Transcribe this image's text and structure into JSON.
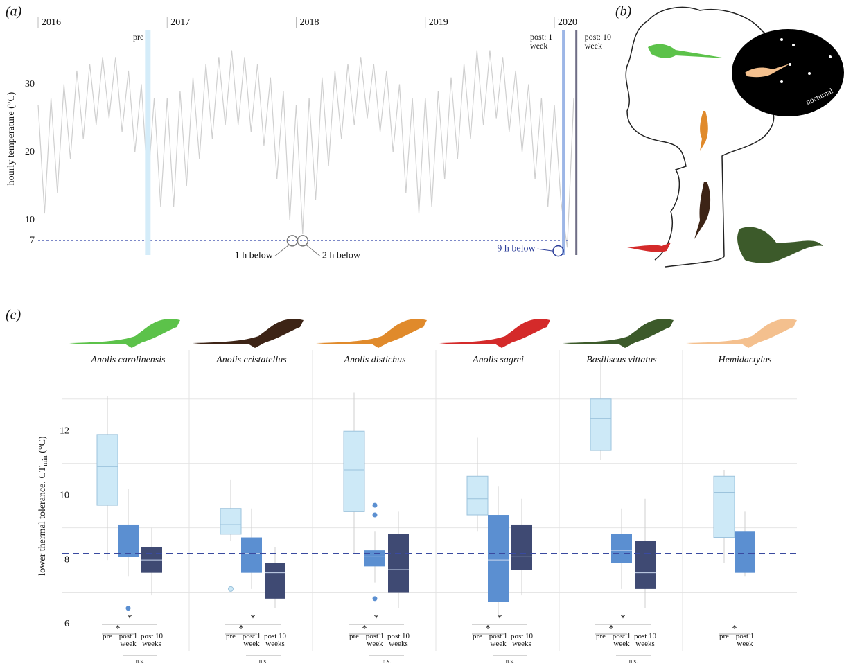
{
  "panel_b": {
    "panel_label": "(b)",
    "night_label": "nocturnal"
  },
  "chart_data": [
    {
      "type": "line",
      "panel_label": "(a)",
      "y_label": "hourly temperature (°C)",
      "x": [
        2016.0,
        2016.05,
        2016.1,
        2016.15,
        2016.2,
        2016.25,
        2016.3,
        2016.35,
        2016.4,
        2016.45,
        2016.5,
        2016.55,
        2016.6,
        2016.65,
        2016.7,
        2016.75,
        2016.8,
        2016.85,
        2016.9,
        2016.95,
        2017.0,
        2017.05,
        2017.1,
        2017.15,
        2017.2,
        2017.25,
        2017.3,
        2017.35,
        2017.4,
        2017.45,
        2017.5,
        2017.55,
        2017.6,
        2017.65,
        2017.7,
        2017.75,
        2017.8,
        2017.85,
        2017.9,
        2017.95,
        2018.0,
        2018.05,
        2018.1,
        2018.15,
        2018.2,
        2018.25,
        2018.3,
        2018.35,
        2018.4,
        2018.45,
        2018.5,
        2018.55,
        2018.6,
        2018.65,
        2018.7,
        2018.75,
        2018.8,
        2018.85,
        2018.9,
        2018.95,
        2019.0,
        2019.05,
        2019.1,
        2019.15,
        2019.2,
        2019.25,
        2019.3,
        2019.35,
        2019.4,
        2019.45,
        2019.5,
        2019.55,
        2019.6,
        2019.65,
        2019.7,
        2019.75,
        2019.8,
        2019.85,
        2019.9,
        2019.95,
        2020.0,
        2020.05,
        2020.1,
        2020.15
      ],
      "values": [
        27,
        11,
        28,
        14,
        30,
        19,
        32,
        22,
        33,
        24,
        34,
        25,
        34,
        23,
        32,
        20,
        30,
        15,
        28,
        12,
        28,
        12,
        29,
        15,
        31,
        19,
        33,
        22,
        34,
        24,
        35,
        24,
        34,
        23,
        33,
        21,
        31,
        16,
        29,
        10,
        27,
        8,
        28,
        13,
        31,
        18,
        32,
        22,
        33,
        24,
        34,
        25,
        33,
        23,
        32,
        20,
        30,
        14,
        28,
        11,
        28,
        12,
        29,
        16,
        31,
        19,
        33,
        22,
        35,
        24,
        35,
        25,
        34,
        23,
        32,
        20,
        30,
        16,
        28,
        12,
        27,
        13,
        6,
        28
      ],
      "color": "#cfcfcf",
      "xlim": [
        2016,
        2020.22
      ],
      "xticks": [
        2016,
        2017,
        2018,
        2019,
        2020
      ],
      "ylim": [
        5,
        38
      ],
      "yticks": [
        7,
        10,
        20,
        30
      ],
      "threshold": 7,
      "threshold_color": "#6a78c0",
      "periods": [
        {
          "label": "pre",
          "x": 2016.85,
          "color": "#d4ecf9"
        },
        {
          "label": "post: 1 week",
          "x": 2020.07,
          "color": "#9db6e6"
        },
        {
          "label": "post: 10 week",
          "x": 2020.17,
          "color": "#6f6e86"
        }
      ],
      "events": [
        {
          "label": "1 h below",
          "x": 2017.97,
          "y": 7,
          "color": "#777777"
        },
        {
          "label": "2 h below",
          "x": 2018.05,
          "y": 7,
          "color": "#777777"
        },
        {
          "label": "9 h below",
          "x": 2020.03,
          "y": 5.5,
          "color": "#2c3e99"
        }
      ]
    },
    {
      "type": "box",
      "panel_label": "(c)",
      "y_label": "lower thermal tolerance, CT",
      "y_label_sub": "min",
      "y_label_end": " (°C)",
      "categories": [
        "pre",
        "post 1 week",
        "post 10 weeks"
      ],
      "colors": [
        "#cde9f7",
        "#5b8fd1",
        "#3f4a73"
      ],
      "ylim": [
        6,
        14.2
      ],
      "yticks": [
        6,
        8,
        10,
        12
      ],
      "minor_yticks": [
        7,
        9,
        11,
        13
      ],
      "threshold": 8.2,
      "threshold_color": "#3a4aa0",
      "species": [
        {
          "name": "Anolis carolinensis",
          "color": "#5cc24a",
          "boxes": [
            {
              "min": 8.0,
              "q1": 9.7,
              "median": 10.9,
              "q3": 11.9,
              "max": 13.1,
              "outliers": []
            },
            {
              "min": 7.5,
              "q1": 8.1,
              "median": 8.4,
              "q3": 9.1,
              "max": 10.2,
              "outliers": [
                6.5
              ]
            },
            {
              "min": 6.9,
              "q1": 7.6,
              "median": 8.0,
              "q3": 8.4,
              "max": 9.0,
              "outliers": []
            }
          ],
          "sig": {
            "pre_post1": "*",
            "pre_post10": "*",
            "post1_post10": "n.s."
          }
        },
        {
          "name": "Anolis cristatellus",
          "color": "#3d2416",
          "boxes": [
            {
              "min": 8.6,
              "q1": 8.8,
              "median": 9.1,
              "q3": 9.6,
              "max": 10.5,
              "outliers": [
                7.1
              ]
            },
            {
              "min": 7.1,
              "q1": 7.6,
              "median": 8.2,
              "q3": 8.7,
              "max": 9.6,
              "outliers": []
            },
            {
              "min": 6.5,
              "q1": 6.8,
              "median": 7.6,
              "q3": 7.9,
              "max": 8.4,
              "outliers": []
            }
          ],
          "sig": {
            "pre_post1": "*",
            "pre_post10": "*",
            "post1_post10": "n.s."
          }
        },
        {
          "name": "Anolis distichus",
          "color": "#e08a2b",
          "boxes": [
            {
              "min": 8.2,
              "q1": 9.5,
              "median": 10.8,
              "q3": 12.0,
              "max": 13.2,
              "outliers": []
            },
            {
              "min": 7.3,
              "q1": 7.8,
              "median": 8.1,
              "q3": 8.3,
              "max": 8.9,
              "outliers": [
                9.7,
                9.4,
                6.8
              ]
            },
            {
              "min": 6.5,
              "q1": 7.0,
              "median": 7.7,
              "q3": 8.8,
              "max": 9.5,
              "outliers": []
            }
          ],
          "sig": {
            "pre_post1": "*",
            "pre_post10": "*",
            "post1_post10": "n.s."
          }
        },
        {
          "name": "Anolis sagrei",
          "color": "#d42a2a",
          "boxes": [
            {
              "min": 8.9,
              "q1": 9.4,
              "median": 9.9,
              "q3": 10.6,
              "max": 11.8,
              "outliers": []
            },
            {
              "min": 6.2,
              "q1": 6.7,
              "median": 8.0,
              "q3": 9.4,
              "max": 10.3,
              "outliers": []
            },
            {
              "min": 6.9,
              "q1": 7.7,
              "median": 8.1,
              "q3": 9.1,
              "max": 9.9,
              "outliers": []
            }
          ],
          "sig": {
            "pre_post1": "*",
            "pre_post10": "*",
            "post1_post10": "n.s."
          }
        },
        {
          "name": "Basiliscus vittatus",
          "color": "#3c5a2a",
          "boxes": [
            {
              "min": 11.1,
              "q1": 11.4,
              "median": 12.4,
              "q3": 13.0,
              "max": 14.2,
              "outliers": []
            },
            {
              "min": 7.1,
              "q1": 7.9,
              "median": 8.3,
              "q3": 8.8,
              "max": 9.6,
              "outliers": []
            },
            {
              "min": 6.5,
              "q1": 7.1,
              "median": 7.6,
              "q3": 8.6,
              "max": 9.9,
              "outliers": []
            }
          ],
          "sig": {
            "pre_post1": "*",
            "pre_post10": "*",
            "post1_post10": "n.s."
          }
        },
        {
          "name": "Hemidactylus",
          "color": "#f4c08e",
          "boxes": [
            {
              "min": 7.9,
              "q1": 8.7,
              "median": 10.1,
              "q3": 10.6,
              "max": 10.8,
              "outliers": []
            },
            {
              "min": 7.5,
              "q1": 7.6,
              "median": 8.4,
              "q3": 8.9,
              "max": 9.5,
              "outliers": []
            }
          ],
          "sig": {
            "pre_post1": "*"
          }
        }
      ]
    }
  ]
}
